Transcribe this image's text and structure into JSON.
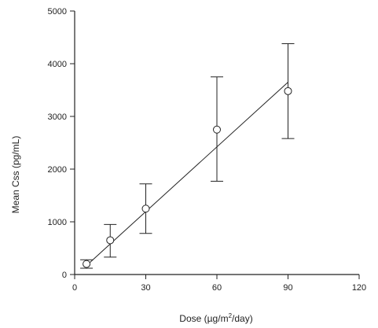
{
  "chart_data": {
    "type": "scatter",
    "title": "",
    "xlabel": "Dose (µg/m²/day)",
    "xlabel_main": "Dose (µg/m",
    "xlabel_sup": "2",
    "xlabel_tail": "/day)",
    "ylabel": "Mean Css (pg/mL)",
    "xlim": [
      0,
      120
    ],
    "ylim": [
      0,
      5000
    ],
    "x_ticks": [
      0,
      30,
      60,
      90,
      120
    ],
    "y_ticks": [
      0,
      1000,
      2000,
      3000,
      4000,
      5000
    ],
    "grid": false,
    "points": [
      {
        "x": 5,
        "y": 200,
        "err_low": 120,
        "err_high": 280
      },
      {
        "x": 15,
        "y": 650,
        "err_low": 330,
        "err_high": 950
      },
      {
        "x": 30,
        "y": 1250,
        "err_low": 780,
        "err_high": 1720
      },
      {
        "x": 60,
        "y": 2750,
        "err_low": 1770,
        "err_high": 3750
      },
      {
        "x": 90,
        "y": 3480,
        "err_low": 2580,
        "err_high": 4380
      }
    ],
    "fit_line": {
      "x": [
        5,
        90
      ],
      "y": [
        170,
        3650
      ]
    },
    "marker_color": "#222222",
    "line_color": "#222222"
  }
}
